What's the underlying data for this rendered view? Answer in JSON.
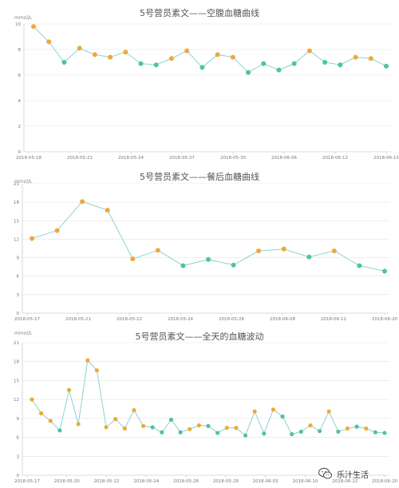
{
  "colors": {
    "line": "#7fcfcb",
    "teal": "#4fc3a1",
    "orange": "#f0a838",
    "grid": "#e4e4e4",
    "axis": "#bdbdbd",
    "tick": "#777777"
  },
  "watermark": {
    "text": "乐汁生活",
    "icon": "wechat-icon"
  },
  "chart_data": [
    {
      "type": "line",
      "title": "5号营员素文——空腹血糖曲线",
      "ylabel": "mmol/L",
      "ylim": [
        0,
        10
      ],
      "yticks": [
        "0",
        "2",
        "4",
        "6",
        "8",
        "10"
      ],
      "xticks": [
        "2018-05-18",
        "2018-05-21",
        "2018-05-24",
        "2018-05-27",
        "2018-05-30",
        "2018-06-06",
        "2018-06-12",
        "2018-06-15"
      ],
      "series": [
        {
          "values": [
            9.8,
            8.6,
            7.0,
            8.1,
            7.6,
            7.4,
            7.8,
            6.9,
            6.8,
            7.3,
            7.9,
            6.6,
            7.6,
            7.4,
            6.2,
            6.9,
            6.4,
            6.9,
            7.9,
            7.0,
            6.8,
            7.4,
            7.3,
            6.7
          ]
        }
      ],
      "point_colors": [
        "orange",
        "orange",
        "teal",
        "orange",
        "orange",
        "orange",
        "orange",
        "teal",
        "teal",
        "orange",
        "orange",
        "teal",
        "orange",
        "orange",
        "teal",
        "teal",
        "teal",
        "teal",
        "orange",
        "teal",
        "teal",
        "orange",
        "orange",
        "teal"
      ],
      "grid": true
    },
    {
      "type": "line",
      "title": "5号营员素文——餐后血糖曲线",
      "ylabel": "mmol/L",
      "ylim": [
        0,
        21
      ],
      "yticks": [
        "0",
        "3",
        "6",
        "9",
        "12",
        "15",
        "18",
        "21"
      ],
      "xticks": [
        "2018-05-17",
        "2018-05-21",
        "2018-05-22",
        "2018-05-24",
        "2018-05-28",
        "2018-06-08",
        "2018-06-12",
        "2018-06-20"
      ],
      "series": [
        {
          "values": [
            12.1,
            13.4,
            18.1,
            16.7,
            8.8,
            10.2,
            7.7,
            8.7,
            7.8,
            10.1,
            10.4,
            9.1,
            10.1,
            7.7,
            6.8
          ]
        }
      ],
      "point_colors": [
        "orange",
        "orange",
        "orange",
        "orange",
        "orange",
        "orange",
        "teal",
        "teal",
        "teal",
        "orange",
        "orange",
        "teal",
        "orange",
        "teal",
        "teal"
      ],
      "grid": true
    },
    {
      "type": "line",
      "title": "5号营员素文——全天的血糖波动",
      "ylabel": "mmol/L",
      "ylim": [
        0,
        21
      ],
      "yticks": [
        "0",
        "3",
        "6",
        "9",
        "12",
        "15",
        "18",
        "21"
      ],
      "xticks": [
        "2018-05-17",
        "2018-05-20",
        "2018-05-22",
        "2018-05-24",
        "2018-05-26",
        "2018-05-29",
        "2018-06-03",
        "2018-06-10",
        "2018-06-12",
        "2018-06-20"
      ],
      "series": [
        {
          "values": [
            12.0,
            9.8,
            8.6,
            7.1,
            13.5,
            8.1,
            18.2,
            16.6,
            7.6,
            8.9,
            7.4,
            10.3,
            7.8,
            7.6,
            6.8,
            8.8,
            6.8,
            7.3,
            7.9,
            7.8,
            6.7,
            7.5,
            7.5,
            6.3,
            10.1,
            6.6,
            10.4,
            9.3,
            6.5,
            6.9,
            7.9,
            7.0,
            10.1,
            6.9,
            7.4,
            7.7,
            7.4,
            6.8,
            6.7
          ]
        }
      ],
      "point_colors": [
        "orange",
        "orange",
        "orange",
        "teal",
        "orange",
        "orange",
        "orange",
        "orange",
        "orange",
        "orange",
        "orange",
        "orange",
        "orange",
        "teal",
        "teal",
        "teal",
        "teal",
        "orange",
        "orange",
        "teal",
        "teal",
        "orange",
        "orange",
        "teal",
        "orange",
        "teal",
        "orange",
        "teal",
        "teal",
        "teal",
        "orange",
        "teal",
        "orange",
        "teal",
        "orange",
        "teal",
        "orange",
        "teal",
        "teal"
      ],
      "grid": true
    }
  ]
}
